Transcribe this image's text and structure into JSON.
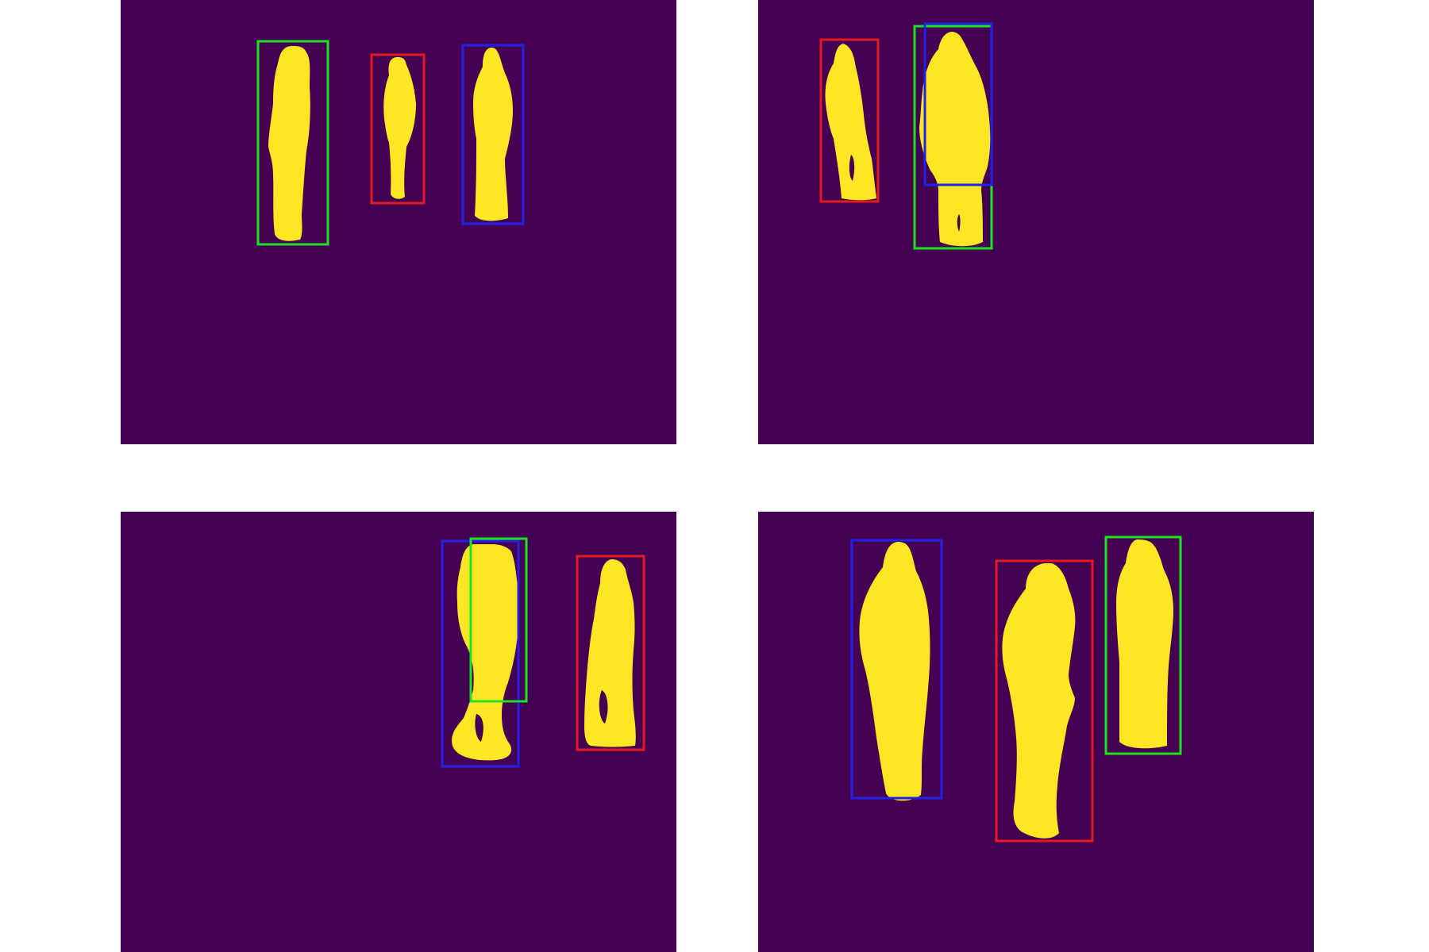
{
  "colors": {
    "page_background": "#ffffff",
    "panel_background": "#440154",
    "person_mask": "#fde725",
    "box_green": "#1fe31f",
    "box_red": "#e41a1c",
    "box_blue": "#1f22e8"
  },
  "panels": [
    {
      "position": "top-left",
      "people": [
        {
          "box": "green"
        },
        {
          "box": "red"
        },
        {
          "box": "blue"
        }
      ]
    },
    {
      "position": "top-right",
      "people": [
        {
          "box": "red"
        },
        {
          "box": "green"
        },
        {
          "box": "blue"
        }
      ]
    },
    {
      "position": "bottom-left",
      "people": [
        {
          "box": "blue"
        },
        {
          "box": "green"
        },
        {
          "box": "red"
        }
      ]
    },
    {
      "position": "bottom-right",
      "people": [
        {
          "box": "blue"
        },
        {
          "box": "red"
        },
        {
          "box": "green"
        }
      ]
    }
  ]
}
